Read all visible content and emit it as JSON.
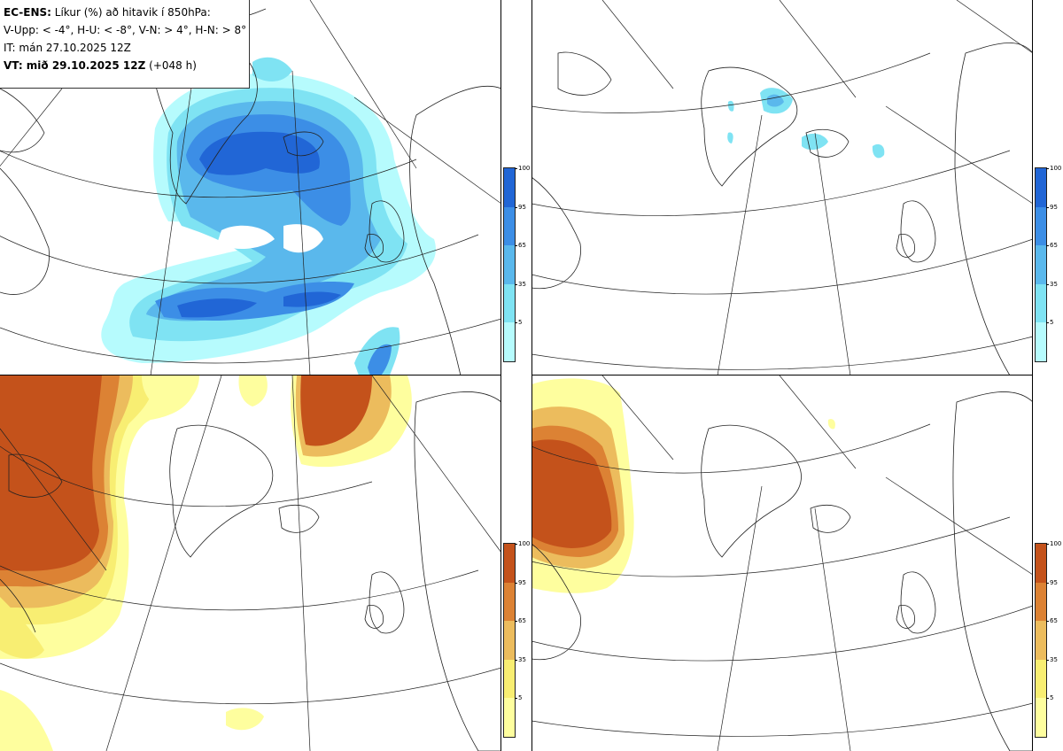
{
  "header": {
    "model": "EC-ENS:",
    "title": "Líkur (%) að hitavik í 850hPa:",
    "thresholds": "V-Upp: < -4°, H-U: < -8°, V-N: > 4°, H-N: > 8°",
    "init_time": "IT: mán 27.10.2025 12Z",
    "valid_label": "VT: mið 29.10.2025 12Z",
    "lead": "(+048 h)"
  },
  "legend": {
    "ticks": [
      "100",
      "95",
      "65",
      "35",
      "5"
    ],
    "cold_colors": [
      "#2166d6",
      "#3c8ee6",
      "#5ab8ec",
      "#7fe3f3",
      "#b6fbfd"
    ],
    "warm_colors": [
      "#c4521b",
      "#dc8234",
      "#ecbc5d",
      "#f8ee72",
      "#fefe9e"
    ]
  },
  "panels": [
    {
      "id": "cold-4",
      "palette": "cold"
    },
    {
      "id": "cold-8",
      "palette": "cold"
    },
    {
      "id": "warm-4",
      "palette": "warm"
    },
    {
      "id": "warm-8",
      "palette": "warm"
    }
  ]
}
